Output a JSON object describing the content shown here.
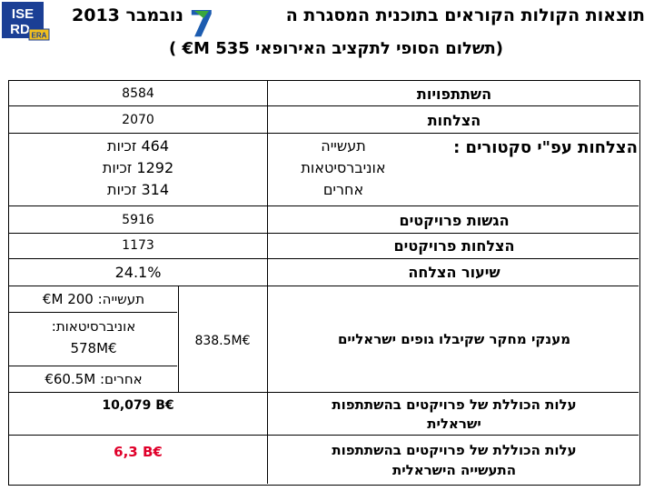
{
  "header": {
    "logo_top": "ISE",
    "logo_bottom": "RD",
    "logo_badge": "ERA",
    "title": "תוצאות הקולות הקוראים בתוכנית המסגרת ה",
    "program_number": "7",
    "month_year": "נובמבר 2013",
    "subtitle": "(תשלום הסופי לתקציב האירופאי 535 M€ )"
  },
  "rows": {
    "participations": {
      "label": "השתתפויות",
      "value": "8584"
    },
    "successes": {
      "label": "הצלחות",
      "value": "2070"
    },
    "by_sector": {
      "label": "הצלחות עפ\"י סקטורים :",
      "sectors": [
        "תעשייה",
        "אוניברסיטאות",
        "אחרים"
      ],
      "values": [
        "464 זכיות",
        "1292 זכיות",
        "314 זכיות"
      ]
    },
    "project_submissions": {
      "label": "הגשות פרויקטים",
      "value": "5916"
    },
    "project_successes": {
      "label": "הצלחות פרויקטים",
      "value": "1173"
    },
    "success_rate": {
      "label": "שיעור הצלחה",
      "value": "24.1%"
    },
    "grants": {
      "label": "מענקי מחקר שקיבלו גופים ישראליים",
      "total": "838.5M€",
      "industry": "תעשייה: 200 M€",
      "universities_label": "אוניברסיטאות:",
      "universities_value": "578M€",
      "others": "אחרים: 60.5M€"
    },
    "total_cost_israel": {
      "label_1": "עלות הכוללת של פרויקטים בהשתתפות",
      "label_2": "ישראלית",
      "value": "10,079 B€"
    },
    "total_cost_industry": {
      "label_1": "עלות הכוללת של פרויקטים בהשתתפות",
      "label_2": "התעשייה הישראלית",
      "value": "6,3 B€"
    }
  },
  "colors": {
    "logo_blue": "#1b3f95",
    "seven_blue": "#1c5cb0",
    "seven_green": "#3aa63e",
    "value_red": "#e0002a"
  }
}
